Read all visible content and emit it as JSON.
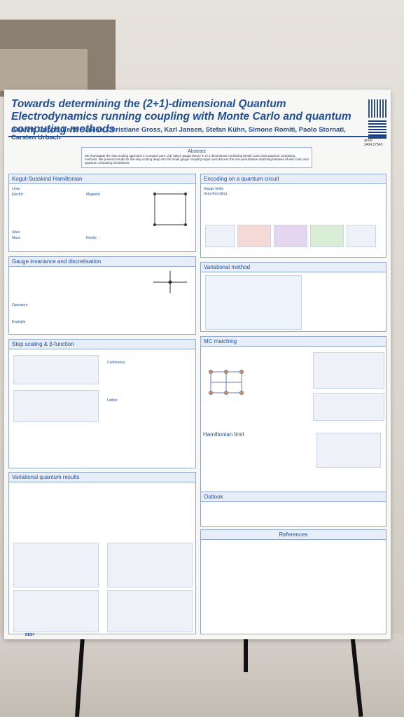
{
  "poster": {
    "title": "Towards determining the (2+1)-dimensional Quantum Electrodynamics running coupling with Monte Carlo and quantum computing methods",
    "authors": "Arianna Crippa, Lena Funcke, Christiane Gross, Karl Jansen, Stefan Kühn, Simone Romiti, Paolo Stornati, Carsten Urbach",
    "arxiv": "arXiv: 2404.17545",
    "abstract_heading": "Abstract",
    "abstract_text": "We investigate the step scaling approach in compact pure U(1) lattice gauge theory in 2+1 dimensions combining Monte Carlo and quantum computing methods. We present results for the step scaling deep into the small gauge coupling region and discuss the non-perturbative matching between Monte Carlo and quantum computing simulations.",
    "sections": {
      "kogut": "Kogut-Susskind Hamiltonian",
      "encoding": "Encoding on a quantum circuit",
      "gauge_fields": "Gauge fields",
      "gauge_inv": "Gauge invariance and discretisation",
      "variational": "Variational method",
      "step_scaling": "Step scaling & β-function",
      "mc_matching": "MC matching",
      "ham_limit": "Hamiltonian limit",
      "var_results": "Variational quantum results",
      "outlook": "Outlook",
      "references": "References"
    },
    "labels": {
      "links": "Links",
      "electric": "Electric",
      "magnetic": "Magnetic",
      "sites": "Sites",
      "mass": "Mass",
      "kinetic": "Kinetic",
      "operators": "Operators",
      "example": "Example",
      "continuous": "Continuous",
      "lattice": "Lattice",
      "gray_encoding": "Gray Encoding",
      "example_ref": "Example ref."
    },
    "logo": "DESY"
  }
}
